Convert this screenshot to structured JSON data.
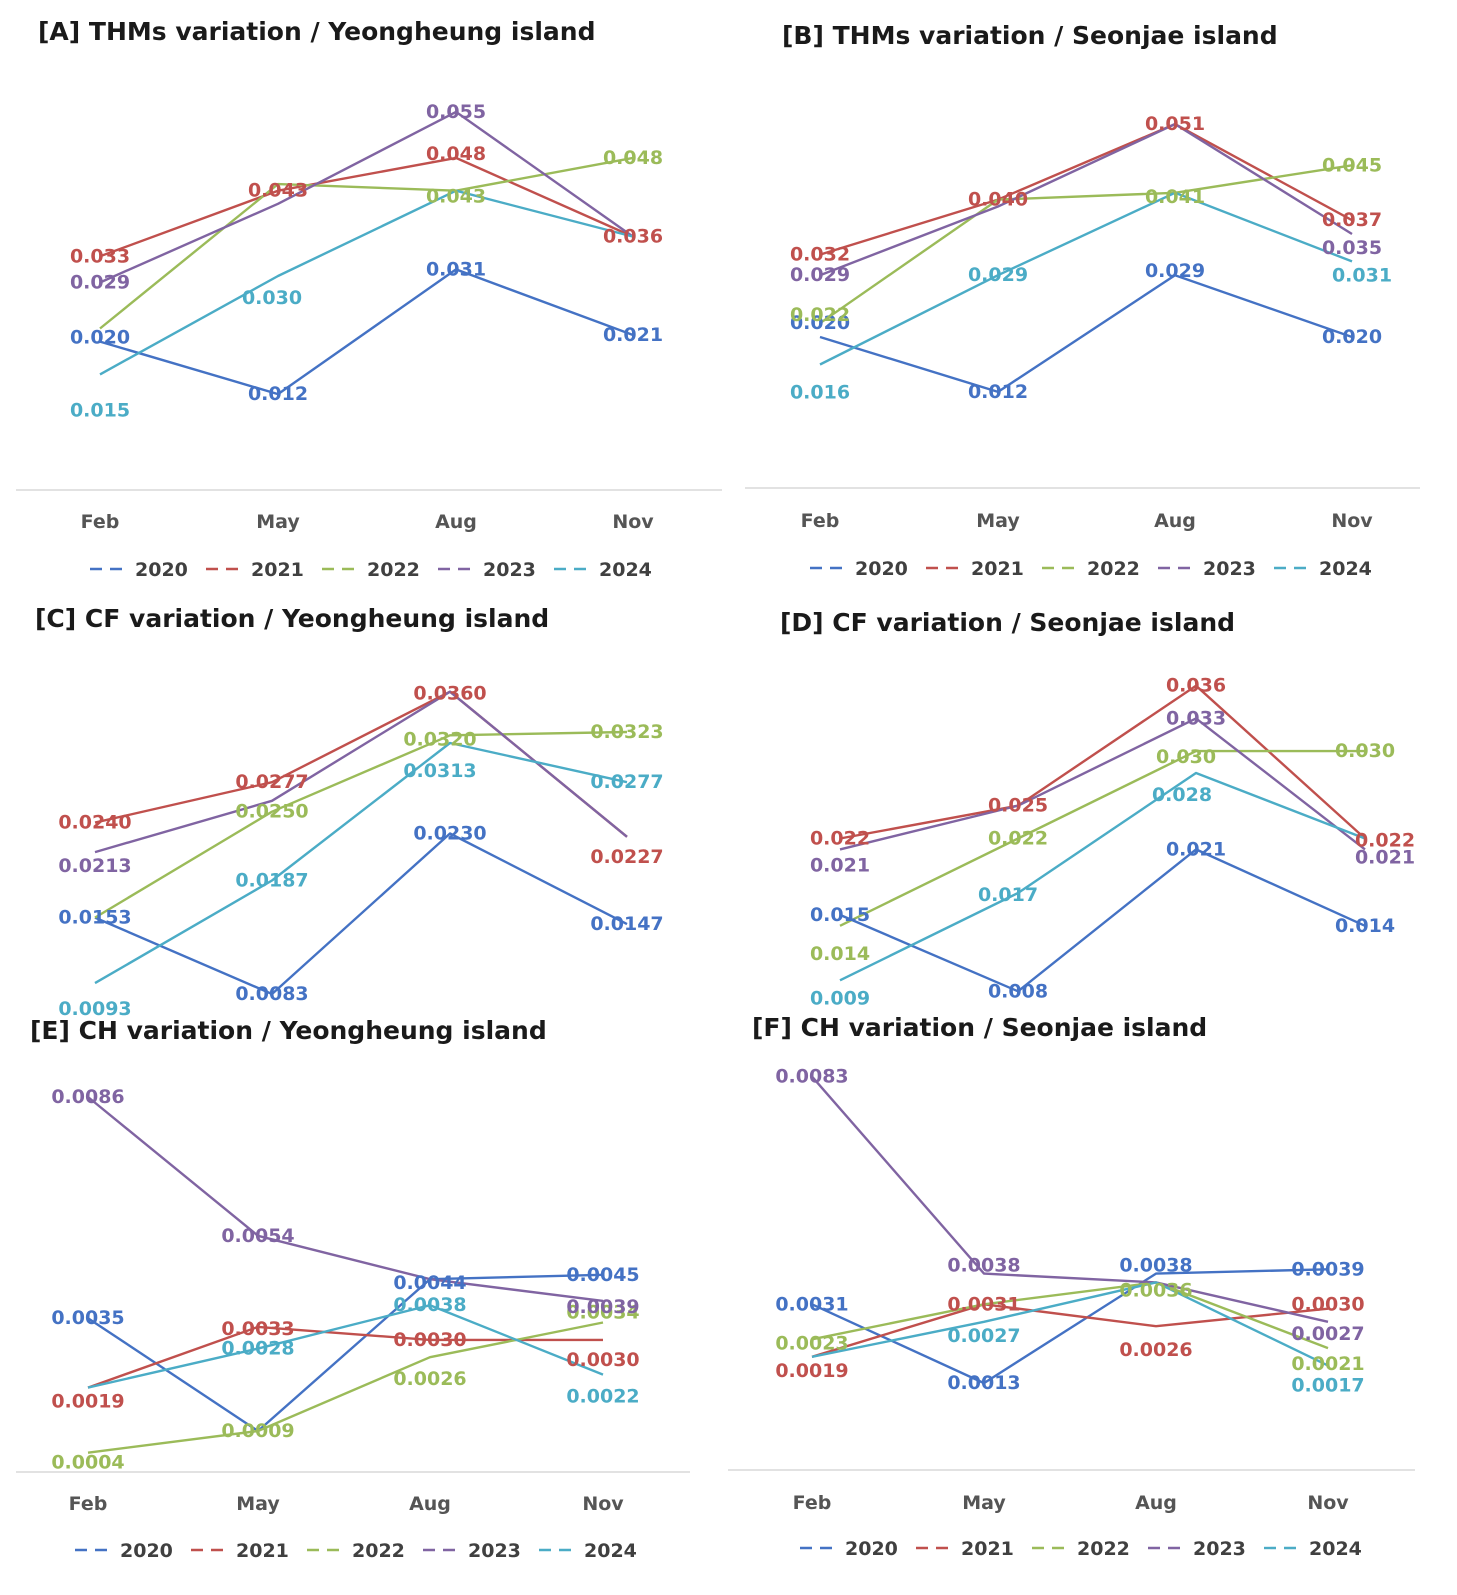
{
  "colors": {
    "2020": "#4472C4",
    "2021": "#C0504D",
    "2022": "#9BBB59",
    "2023": "#8064A2",
    "2024": "#4BACC6"
  },
  "legend": [
    "2020",
    "2021",
    "2022",
    "2023",
    "2024"
  ],
  "chart_data": [
    {
      "id": "A",
      "type": "line",
      "title": "[A]  THMs variation / Yeongheung island",
      "categories": [
        "Feb",
        "May",
        "Aug",
        "Nov"
      ],
      "ylim": [
        0.005,
        0.062
      ],
      "series": [
        {
          "name": "2020",
          "values": [
            0.02,
            0.012,
            0.031,
            0.021
          ],
          "labels": [
            "0.020",
            "0.012",
            "0.031",
            "0.021"
          ]
        },
        {
          "name": "2021",
          "values": [
            0.033,
            0.043,
            0.048,
            0.036
          ],
          "labels": [
            "0.033",
            "0.043",
            "0.048",
            "0.036"
          ]
        },
        {
          "name": "2022",
          "values": [
            0.022,
            0.044,
            0.043,
            0.048
          ],
          "labels": [
            "",
            "",
            "0.043",
            "0.048"
          ]
        },
        {
          "name": "2023",
          "values": [
            0.029,
            0.041,
            0.055,
            0.036
          ],
          "labels": [
            "0.029",
            "",
            "0.055",
            ""
          ]
        },
        {
          "name": "2024",
          "values": [
            0.015,
            0.03,
            0.043,
            0.036
          ],
          "labels": [
            "0.015",
            "0.030",
            "",
            ""
          ]
        }
      ]
    },
    {
      "id": "B",
      "type": "line",
      "title": "[B]  THMs variation / Seonjae island",
      "categories": [
        "Feb",
        "May",
        "Aug",
        "Nov"
      ],
      "ylim": [
        0.005,
        0.058
      ],
      "series": [
        {
          "name": "2020",
          "values": [
            0.02,
            0.012,
            0.029,
            0.02
          ],
          "labels": [
            "0.020",
            "0.012",
            "0.029",
            "0.020"
          ]
        },
        {
          "name": "2021",
          "values": [
            0.032,
            0.04,
            0.051,
            0.037
          ],
          "labels": [
            "0.032",
            "0.040",
            "0.051",
            "0.037"
          ]
        },
        {
          "name": "2022",
          "values": [
            0.022,
            0.04,
            0.041,
            0.045
          ],
          "labels": [
            "0.022",
            "",
            "0.041",
            "0.045"
          ]
        },
        {
          "name": "2023",
          "values": [
            0.029,
            0.039,
            0.051,
            0.035
          ],
          "labels": [
            "0.029",
            "",
            "",
            "0.035"
          ]
        },
        {
          "name": "2024",
          "values": [
            0.016,
            0.029,
            0.041,
            0.031
          ],
          "labels": [
            "0.016",
            "0.029",
            "",
            "0.031"
          ]
        }
      ]
    },
    {
      "id": "C",
      "type": "line",
      "title": "[C]  CF variation / Yeongheung island",
      "categories": [
        "Feb",
        "May",
        "Aug",
        "Nov"
      ],
      "ylim": [
        0.005,
        0.04
      ],
      "series": [
        {
          "name": "2020",
          "values": [
            0.0153,
            0.0083,
            0.023,
            0.0147
          ],
          "labels": [
            "0.0153",
            "0.0083",
            "0.0230",
            "0.0147"
          ]
        },
        {
          "name": "2021",
          "values": [
            0.024,
            0.0277,
            0.036,
            0.0227
          ],
          "labels": [
            "0.0240",
            "0.0277",
            "0.0360",
            "0.0227"
          ]
        },
        {
          "name": "2022",
          "values": [
            0.0153,
            0.025,
            0.032,
            0.0323
          ],
          "labels": [
            "",
            "0.0250",
            "0.0320",
            "0.0323"
          ]
        },
        {
          "name": "2023",
          "values": [
            0.0213,
            0.026,
            0.036,
            0.0227
          ],
          "labels": [
            "0.0213",
            "",
            "",
            ""
          ]
        },
        {
          "name": "2024",
          "values": [
            0.0093,
            0.0187,
            0.0313,
            0.0277
          ],
          "labels": [
            "0.0093",
            "0.0187",
            "0.0313",
            "0.0277"
          ]
        }
      ]
    },
    {
      "id": "D",
      "type": "line",
      "title": "[D]  CF variation / Seonjae island",
      "categories": [
        "Feb",
        "May",
        "Aug",
        "Nov"
      ],
      "ylim": [
        0.005,
        0.04
      ],
      "series": [
        {
          "name": "2020",
          "values": [
            0.015,
            0.008,
            0.021,
            0.014
          ],
          "labels": [
            "0.015",
            "0.008",
            "0.021",
            "0.014"
          ]
        },
        {
          "name": "2021",
          "values": [
            0.022,
            0.025,
            0.036,
            0.022
          ],
          "labels": [
            "0.022",
            "0.025",
            "0.036",
            "0.022"
          ]
        },
        {
          "name": "2022",
          "values": [
            0.014,
            0.022,
            0.03,
            0.03
          ],
          "labels": [
            "0.014",
            "0.022",
            "0.030",
            "0.030"
          ]
        },
        {
          "name": "2023",
          "values": [
            0.021,
            0.025,
            0.033,
            0.021
          ],
          "labels": [
            "0.021",
            "",
            "0.033",
            "0.021"
          ]
        },
        {
          "name": "2024",
          "values": [
            0.009,
            0.017,
            0.028,
            0.022
          ],
          "labels": [
            "0.009",
            "0.017",
            "0.028",
            ""
          ]
        }
      ]
    },
    {
      "id": "E",
      "type": "line",
      "title": "[E]  CH variation / Yeongheung island",
      "categories": [
        "Feb",
        "May",
        "Aug",
        "Nov"
      ],
      "ylim": [
        0.0,
        0.0095
      ],
      "series": [
        {
          "name": "2020",
          "values": [
            0.0035,
            0.0009,
            0.0044,
            0.0045
          ],
          "labels": [
            "0.0035",
            "",
            "0.0044",
            "0.0045"
          ]
        },
        {
          "name": "2021",
          "values": [
            0.0019,
            0.0033,
            0.003,
            0.003
          ],
          "labels": [
            "0.0019",
            "0.0033",
            "0.0030",
            "0.0030"
          ]
        },
        {
          "name": "2022",
          "values": [
            0.0004,
            0.0009,
            0.0026,
            0.0034
          ],
          "labels": [
            "0.0004",
            "0.0009",
            "0.0026",
            "0.0034"
          ]
        },
        {
          "name": "2023",
          "values": [
            0.0086,
            0.0054,
            0.0044,
            0.0039
          ],
          "labels": [
            "0.0086",
            "0.0054",
            "",
            "0.0039"
          ]
        },
        {
          "name": "2024",
          "values": [
            0.0019,
            0.0028,
            0.0038,
            0.0022
          ],
          "labels": [
            "",
            "0.0028",
            "0.0038",
            "0.0022"
          ]
        }
      ]
    },
    {
      "id": "F",
      "type": "line",
      "title": "[F]  CH variation / Seonjae island",
      "categories": [
        "Feb",
        "May",
        "Aug",
        "Nov"
      ],
      "ylim": [
        0.0,
        0.009
      ],
      "series": [
        {
          "name": "2020",
          "values": [
            0.0031,
            0.0013,
            0.0038,
            0.0039
          ],
          "labels": [
            "0.0031",
            "0.0013",
            "0.0038",
            "0.0039"
          ]
        },
        {
          "name": "2021",
          "values": [
            0.0019,
            0.0031,
            0.0026,
            0.003
          ],
          "labels": [
            "0.0019",
            "0.0031",
            "0.0026",
            "0.0030"
          ]
        },
        {
          "name": "2022",
          "values": [
            0.0023,
            0.0031,
            0.0036,
            0.0021
          ],
          "labels": [
            "0.0023",
            "",
            "0.0036",
            "0.0021"
          ]
        },
        {
          "name": "2023",
          "values": [
            0.0083,
            0.0038,
            0.0036,
            0.0027
          ],
          "labels": [
            "0.0083",
            "0.0038",
            "",
            "0.0027"
          ]
        },
        {
          "name": "2024",
          "values": [
            0.0019,
            0.0027,
            0.0036,
            0.0017
          ],
          "labels": [
            "",
            "0.0027",
            "",
            "0.0017"
          ]
        }
      ]
    }
  ]
}
